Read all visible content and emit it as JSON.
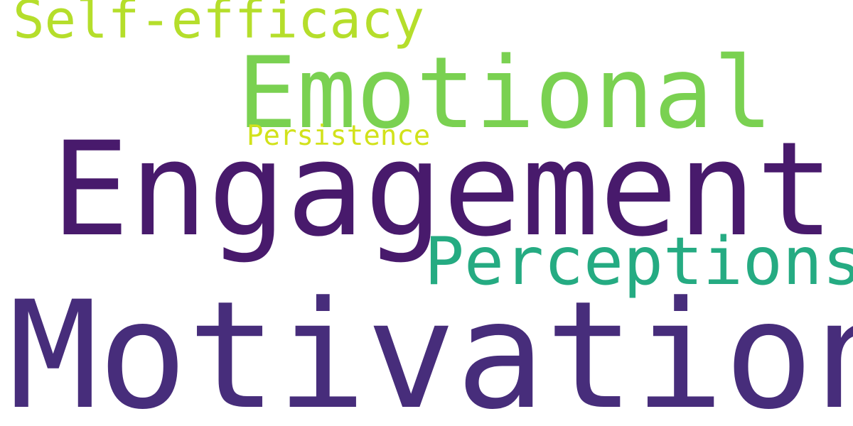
{
  "words": [
    {
      "text": "Motivation",
      "color": "#472d7b"
    },
    {
      "text": "Engagement",
      "color": "#481a6c"
    },
    {
      "text": "Emotional",
      "color": "#7ad151"
    },
    {
      "text": "Perceptions",
      "color": "#25ab82"
    },
    {
      "text": "Self-efficacy",
      "color": "#b5de2b"
    },
    {
      "text": "Persistence",
      "color": "#d2e21b"
    }
  ]
}
